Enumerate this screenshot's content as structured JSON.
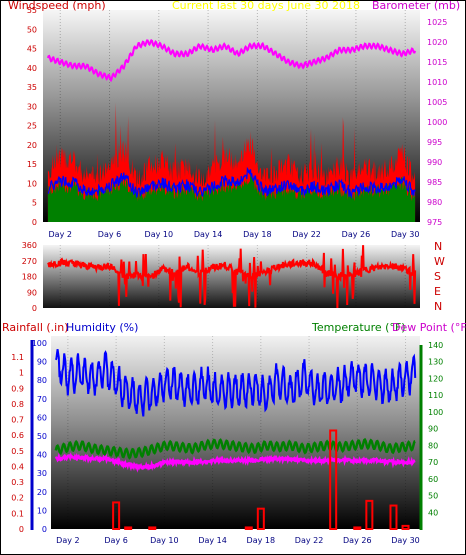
{
  "top_panel": {
    "left_title": "Windspeed (mph)",
    "center_title": "Current last 30 days June 30 2018",
    "right_title": "Barometer (mb)",
    "left_ticks": [
      "0",
      "5",
      "10",
      "15",
      "20",
      "25",
      "30",
      "35",
      "40",
      "45",
      "50",
      "55"
    ],
    "right_ticks": [
      "975",
      "980",
      "985",
      "990",
      "995",
      "1000",
      "1005",
      "1010",
      "1015",
      "1020",
      "1025"
    ],
    "day_labels": [
      "Day 2",
      "Day 6",
      "Day 10",
      "Day 14",
      "Day 18",
      "Day 22",
      "Day 26",
      "Day 30"
    ]
  },
  "dir_panel": {
    "left_ticks": [
      "0",
      "90",
      "180",
      "270",
      "360"
    ],
    "compass_labels": [
      "N",
      "W",
      "S",
      "E",
      "N"
    ]
  },
  "bottom_panel": {
    "rain_label": "Rainfall (.in)",
    "humidity_label": "Humidity (%)",
    "temp_label": "Temperature (°F)",
    "dew_label": "Dew Point (°F)",
    "rain_ticks": [
      "0",
      "0.1",
      "0.2",
      "0.3",
      "0.4",
      "0.5",
      "0.6",
      "0.7",
      "0.8",
      "0.9",
      "1",
      "1.1"
    ],
    "humidity_ticks": [
      "0",
      "10",
      "20",
      "30",
      "40",
      "50",
      "60",
      "70",
      "80",
      "90",
      "100"
    ],
    "temp_ticks": [
      "40",
      "50",
      "60",
      "70",
      "80",
      "90",
      "100",
      "110",
      "120",
      "130",
      "140"
    ],
    "day_labels": [
      "Day 2",
      "Day 6",
      "Day 10",
      "Day 14",
      "Day 18",
      "Day 22",
      "Day 26",
      "Day 30"
    ]
  },
  "colors": {
    "windspeed": "#ff0000",
    "gust_avg": "#0000ff",
    "wind_base": "#008000",
    "barometer": "#ff00ff",
    "direction": "#ff0000",
    "humidity": "#0000ff",
    "temperature": "#008000",
    "dew_point": "#ff00ff",
    "rainfall": "#ff0000",
    "left_axis_label": "#cc0000",
    "humidity_axis": "#0000cc",
    "temp_axis": "#008000",
    "title_center": "#ffff00",
    "barometer_axis": "#cc00cc"
  },
  "chart_data": [
    {
      "type": "line",
      "title": "Current last 30 days June 30 2018",
      "x": "Day 1 to Day 31",
      "series": [
        {
          "name": "Windspeed (mph)",
          "ylim": [
            0,
            55
          ],
          "values": [
            13,
            17,
            16,
            12,
            12,
            15,
            19,
            11,
            14,
            16,
            13,
            15,
            11,
            14,
            17,
            16,
            21,
            12,
            13,
            15,
            12,
            14,
            12,
            15,
            11,
            14,
            13,
            14,
            18,
            10
          ]
        },
        {
          "name": "Barometer (mb)",
          "ylim": [
            975,
            1025
          ],
          "values": [
            1016,
            1015,
            1014,
            1014,
            1012,
            1011,
            1014,
            1019,
            1020,
            1019,
            1017,
            1017,
            1019,
            1018,
            1019,
            1017,
            1019,
            1019,
            1017,
            1015,
            1014,
            1015,
            1016,
            1018,
            1018,
            1019,
            1019,
            1018,
            1017,
            1018
          ]
        }
      ]
    },
    {
      "type": "line",
      "x": "Day 1 to Day 31",
      "ylim": [
        0,
        360
      ],
      "series": [
        {
          "name": "Wind Direction",
          "values": [
            250,
            260,
            255,
            240,
            235,
            240,
            180,
            190,
            170,
            230,
            200,
            235,
            200,
            230,
            245,
            200,
            180,
            200,
            235,
            250,
            260,
            255,
            200,
            180,
            180,
            220,
            230,
            245,
            230,
            200
          ]
        }
      ]
    },
    {
      "type": "line",
      "x": "Day 1 to Day 31",
      "series": [
        {
          "name": "Humidity (%)",
          "ylim": [
            0,
            100
          ],
          "values": [
            88,
            82,
            84,
            80,
            86,
            78,
            72,
            70,
            75,
            80,
            76,
            74,
            78,
            73,
            75,
            74,
            76,
            72,
            80,
            74,
            82,
            74,
            76,
            77,
            82,
            80,
            78,
            76,
            80,
            84
          ]
        },
        {
          "name": "Temperature (°F)",
          "ylim": [
            30,
            140
          ],
          "values": [
            77,
            79,
            80,
            78,
            77,
            76,
            75,
            76,
            78,
            80,
            79,
            78,
            80,
            81,
            80,
            79,
            78,
            80,
            79,
            80,
            78,
            79,
            80,
            79,
            80,
            81,
            80,
            78,
            79,
            80
          ]
        },
        {
          "name": "Dew Point (°F)",
          "ylim": [
            30,
            140
          ],
          "values": [
            72,
            73,
            73,
            72,
            72,
            70,
            68,
            67,
            68,
            70,
            70,
            70,
            70,
            71,
            71,
            71,
            71,
            72,
            72,
            72,
            71,
            71,
            71,
            71,
            71,
            71,
            71,
            70,
            70,
            70
          ]
        },
        {
          "name": "Rainfall (.in)",
          "ylim": [
            0,
            1.1
          ],
          "values": [
            0,
            0,
            0,
            0,
            0,
            0.17,
            0.01,
            0,
            0.01,
            0,
            0,
            0,
            0,
            0,
            0,
            0,
            0.01,
            0.13,
            0,
            0,
            0,
            0,
            0,
            0.63,
            0,
            0.01,
            0.18,
            0,
            0.15,
            0.02
          ]
        }
      ]
    }
  ]
}
